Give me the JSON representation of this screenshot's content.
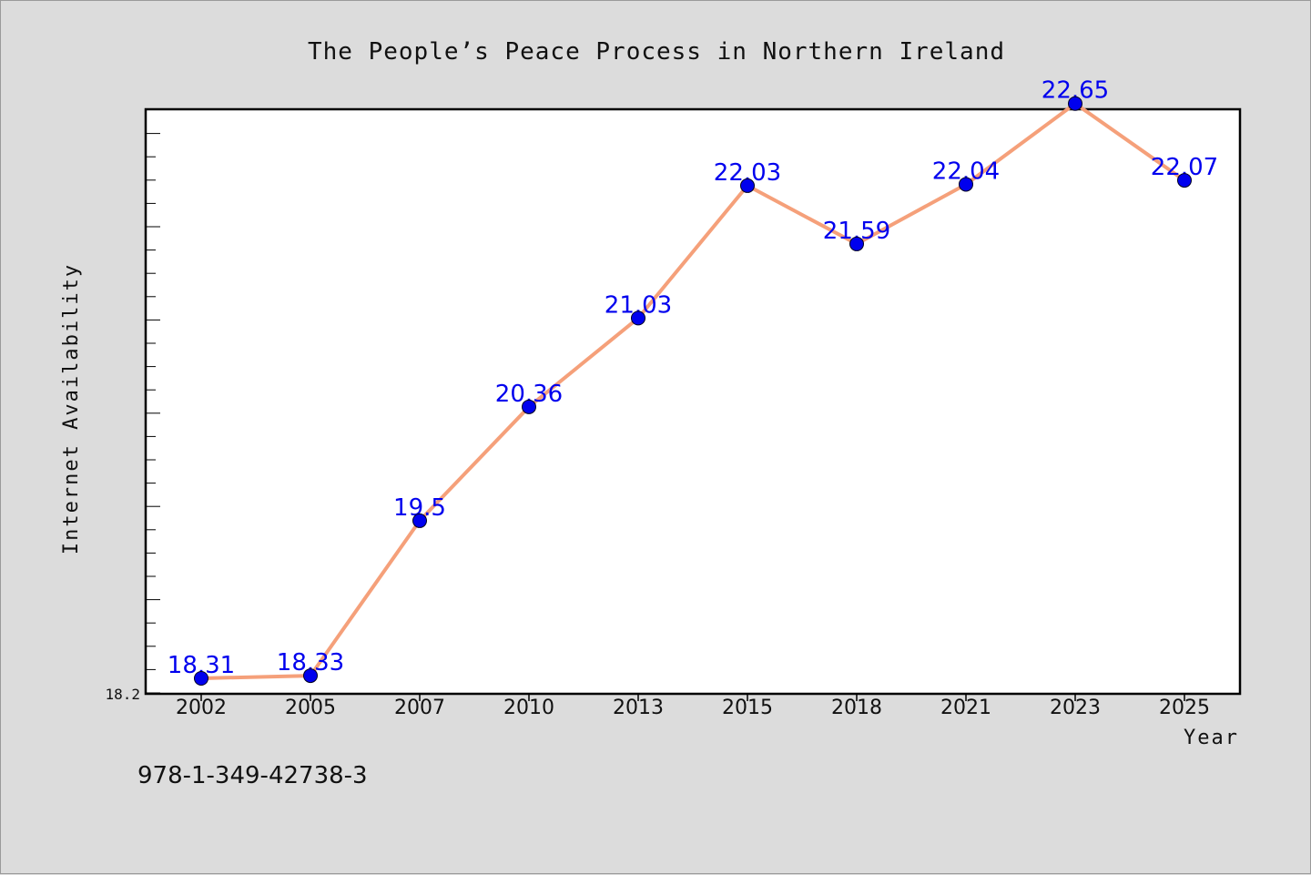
{
  "chart_data": {
    "type": "line",
    "title": "The People’s Peace Process in Northern Ireland",
    "xlabel": "Year",
    "ylabel": "Internet Availability",
    "categories": [
      "2002",
      "2005",
      "2007",
      "2010",
      "2013",
      "2015",
      "2018",
      "2021",
      "2023",
      "2025"
    ],
    "series": [
      {
        "values": [
          18.31,
          18.33,
          19.5,
          20.36,
          21.03,
          22.03,
          21.59,
          22.04,
          22.65,
          22.07
        ]
      }
    ],
    "ylim": [
      18.2,
      22.6
    ],
    "y_min_label": "18.2",
    "grid": false,
    "line_color": "#f5a07a",
    "marker_color": "#0000ee",
    "label_color": "#0000ee"
  },
  "footer": {
    "isbn": "978-1-349-42738-3"
  }
}
